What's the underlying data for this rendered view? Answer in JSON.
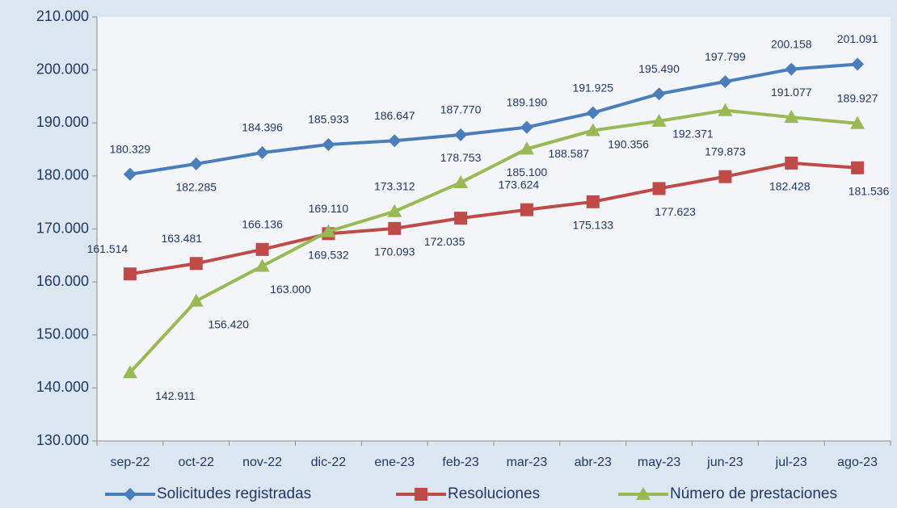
{
  "chart_data": {
    "type": "line",
    "categories": [
      "sep-22",
      "oct-22",
      "nov-22",
      "dic-22",
      "ene-23",
      "feb-23",
      "mar-23",
      "abr-23",
      "may-23",
      "jun-23",
      "jul-23",
      "ago-23"
    ],
    "series": [
      {
        "name": "Solicitudes registradas",
        "color": "#4a7ebb",
        "marker": "diamond",
        "values": [
          180329,
          182285,
          184396,
          185933,
          186647,
          187770,
          189190,
          191925,
          195490,
          197799,
          200158,
          201091
        ],
        "value_labels": [
          "180.329",
          "182.285",
          "184.396",
          "185.933",
          "186.647",
          "187.770",
          "189.190",
          "191.925",
          "195.490",
          "197.799",
          "200.158",
          "201.091"
        ]
      },
      {
        "name": "Resoluciones",
        "color": "#be4b48",
        "marker": "square",
        "values": [
          161514,
          163481,
          166136,
          169110,
          170093,
          172035,
          173624,
          175133,
          177623,
          179873,
          182428,
          181536
        ],
        "value_labels": [
          "161.514",
          "163.481",
          "166.136",
          "169.110",
          "170.093",
          "172.035",
          "173.624",
          "175.133",
          "177.623",
          "179.873",
          "182.428",
          "181.536"
        ]
      },
      {
        "name": "Número de prestaciones",
        "color": "#98b954",
        "marker": "triangle",
        "values": [
          142911,
          156420,
          163000,
          169532,
          173312,
          178753,
          185100,
          188587,
          190356,
          192371,
          191077,
          189927
        ],
        "value_labels": [
          "142.911",
          "156.420",
          "163.000",
          "169.532",
          "173.312",
          "178.753",
          "185.100",
          "188.587",
          "190.356",
          "192.371",
          "191.077",
          "189.927"
        ]
      }
    ],
    "ylim": [
      130000,
      210000
    ],
    "yticks": [
      {
        "value": 130000,
        "label": "130.000"
      },
      {
        "value": 140000,
        "label": "140.000"
      },
      {
        "value": 150000,
        "label": "150.000"
      },
      {
        "value": 160000,
        "label": "160.000"
      },
      {
        "value": 170000,
        "label": "170.000"
      },
      {
        "value": 180000,
        "label": "180.000"
      },
      {
        "value": 190000,
        "label": "190.000"
      },
      {
        "value": 200000,
        "label": "200.000"
      },
      {
        "value": 210000,
        "label": "210.000"
      }
    ],
    "grid": false,
    "legend": "bottom"
  }
}
